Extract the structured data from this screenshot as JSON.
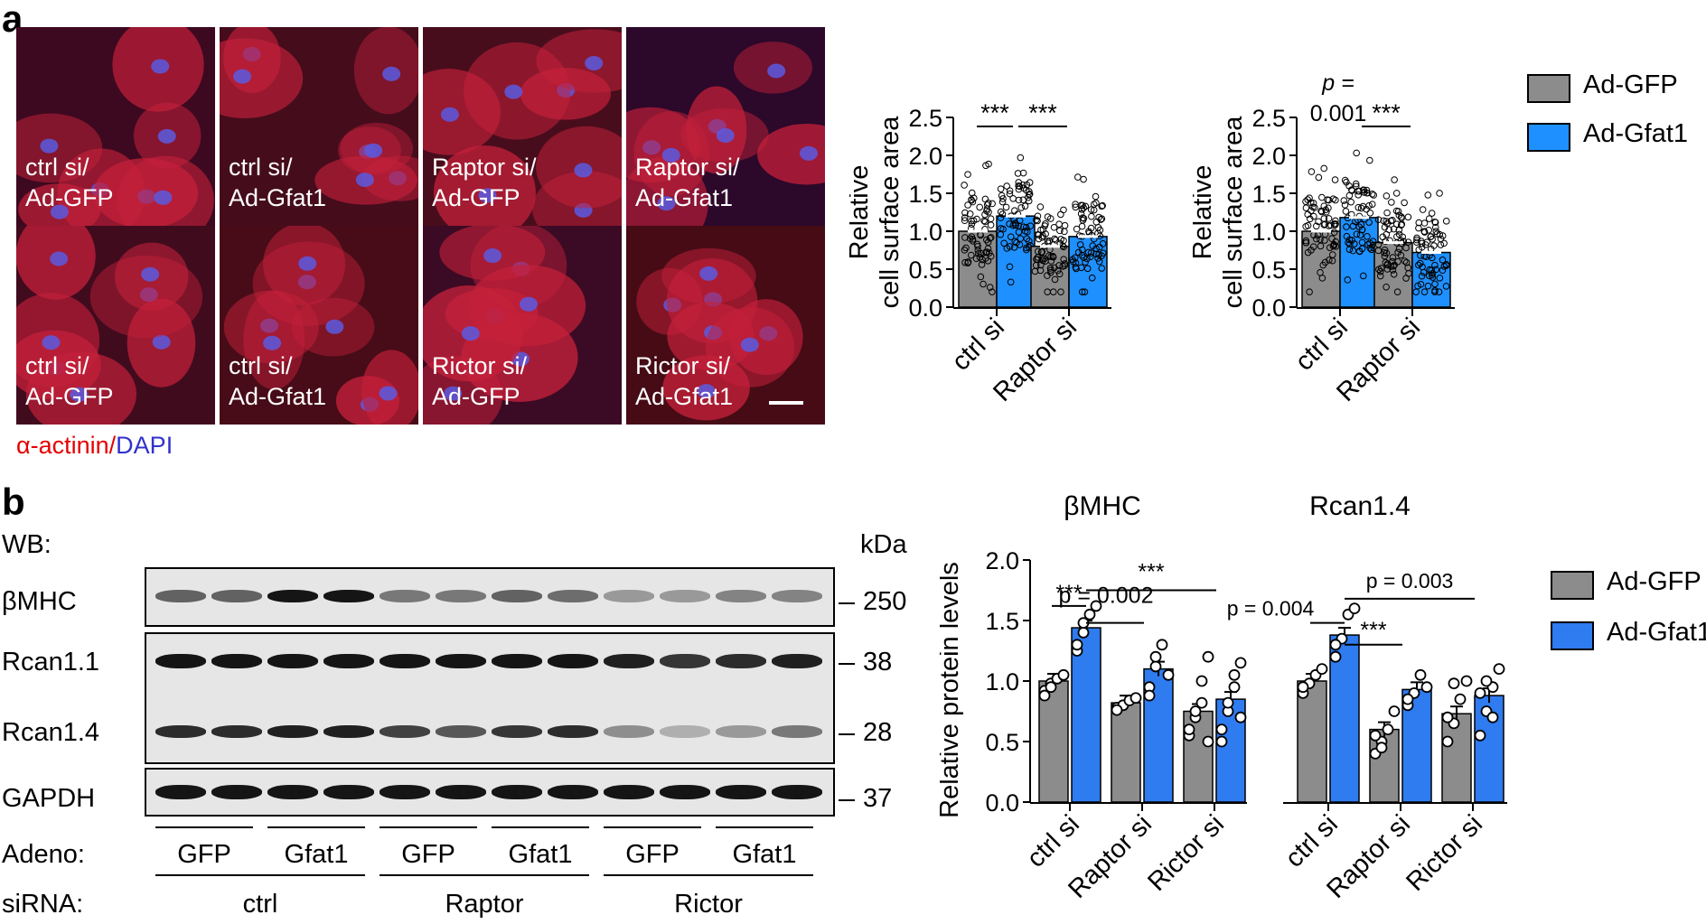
{
  "panel_a": {
    "letter": "a",
    "micrographs": [
      {
        "label": "ctrl si/\nAd-GFP",
        "tint": "#5b0f28"
      },
      {
        "label": "ctrl si/\nAd-Gfat1",
        "tint": "#6a1420"
      },
      {
        "label": "Raptor si/\nAd-GFP",
        "tint": "#701620"
      },
      {
        "label": "Raptor si/\nAd-Gfat1",
        "tint": "#3c0c3a"
      },
      {
        "label": "ctrl si/\nAd-GFP",
        "tint": "#621224"
      },
      {
        "label": "ctrl si/\nAd-Gfat1",
        "tint": "#6e1418"
      },
      {
        "label": "Rictor si/\nAd-GFP",
        "tint": "#581030"
      },
      {
        "label": "Rictor si/\nAd-Gfat1",
        "tint": "#6c1214"
      }
    ],
    "stain_actinin": "α-actinin",
    "stain_slash": "/",
    "stain_dapi": "DAPI"
  },
  "panel_b": {
    "letter": "b",
    "wb_label": "WB:",
    "kda_label": "kDa",
    "blots": [
      {
        "name": "βMHC",
        "kda": "250"
      },
      {
        "name": "Rcan1.1",
        "kda": "38"
      },
      {
        "name": "Rcan1.4",
        "kda": "28"
      },
      {
        "name": "GAPDH",
        "kda": "37"
      }
    ],
    "adeno_label": "Adeno:",
    "adeno_groups": [
      "GFP",
      "Gfat1",
      "GFP",
      "Gfat1",
      "GFP",
      "Gfat1"
    ],
    "sirna_label": "siRNA:",
    "sirna_groups": [
      "ctrl",
      "Raptor",
      "Rictor"
    ]
  },
  "legend": {
    "gfp": "Ad-GFP",
    "gfat1": "Ad-Gfat1"
  },
  "colors": {
    "gfp": "#8c8c8c",
    "gfat1": "#1e90ff",
    "gfat1_b": "#2f7bf0"
  },
  "chart_data": [
    {
      "type": "bar",
      "ylabel": "Relative\ncell surface area",
      "ylim": [
        0,
        2.5
      ],
      "yticks": [
        "0.0",
        "0.5",
        "1.0",
        "1.5",
        "2.0",
        "2.5"
      ],
      "categories": [
        "ctrl si",
        "Raptor si"
      ],
      "series": [
        {
          "name": "Ad-GFP",
          "values": [
            1.0,
            0.8
          ]
        },
        {
          "name": "Ad-Gfat1",
          "values": [
            1.2,
            0.93
          ]
        }
      ],
      "annotations": [
        "***",
        "***"
      ]
    },
    {
      "type": "bar",
      "ylabel": "Relative\ncell surface area",
      "ylim": [
        0,
        2.5
      ],
      "yticks": [
        "0.0",
        "0.5",
        "1.0",
        "1.5",
        "2.0",
        "2.5"
      ],
      "categories": [
        "ctrl si",
        "Raptor si"
      ],
      "series": [
        {
          "name": "Ad-GFP",
          "values": [
            1.0,
            0.85
          ]
        },
        {
          "name": "Ad-Gfat1",
          "values": [
            1.18,
            0.72
          ]
        }
      ],
      "annotations": [
        "p =",
        "0.001",
        "***"
      ]
    },
    {
      "type": "bar",
      "title": "βMHC",
      "ylabel": "Relative protein levels",
      "ylim": [
        0,
        2.0
      ],
      "yticks": [
        "0.0",
        "0.5",
        "1.0",
        "1.5",
        "2.0"
      ],
      "categories": [
        "ctrl si",
        "Raptor si",
        "Rictor si"
      ],
      "series": [
        {
          "name": "Ad-GFP",
          "values": [
            1.0,
            0.82,
            0.75
          ]
        },
        {
          "name": "Ad-Gfat1",
          "values": [
            1.44,
            1.1,
            0.85
          ]
        }
      ],
      "points": {
        "gfp": [
          [
            0.92,
            0.98,
            1.02,
            1.05,
            0.88,
            0.95
          ],
          [
            0.78,
            0.8,
            0.84,
            0.86,
            0.76
          ],
          [
            0.55,
            0.7,
            0.82,
            1.2,
            0.6,
            0.75,
            1.0,
            0.5
          ]
        ],
        "gfat1": [
          [
            1.25,
            1.4,
            1.55,
            1.62,
            1.3,
            1.48
          ],
          [
            0.95,
            1.12,
            1.3,
            1.05,
            0.88,
            1.2
          ],
          [
            0.5,
            0.75,
            0.95,
            1.15,
            0.6,
            0.82,
            1.05,
            0.7
          ]
        ]
      },
      "annotations": [
        "***",
        "p = 0.002",
        "***"
      ]
    },
    {
      "type": "bar",
      "title": "Rcan1.4",
      "ylim": [
        0,
        2.0
      ],
      "categories": [
        "ctrl si",
        "Raptor si",
        "Rictor si"
      ],
      "series": [
        {
          "name": "Ad-GFP",
          "values": [
            1.0,
            0.6,
            0.73
          ]
        },
        {
          "name": "Ad-Gfat1",
          "values": [
            1.38,
            0.93,
            0.88
          ]
        }
      ],
      "points": {
        "gfp": [
          [
            0.9,
            0.98,
            1.05,
            1.1,
            0.95
          ],
          [
            0.4,
            0.5,
            0.6,
            0.75,
            0.55,
            0.45
          ],
          [
            0.5,
            0.65,
            0.85,
            1.0,
            0.7,
            0.98
          ]
        ],
        "gfat1": [
          [
            1.2,
            1.35,
            1.55,
            1.6,
            1.3
          ],
          [
            0.8,
            0.9,
            1.05,
            0.95,
            0.85
          ],
          [
            0.55,
            0.75,
            0.95,
            1.1,
            0.9,
            1.0,
            0.7
          ]
        ]
      },
      "annotations": [
        "p = 0.004",
        "***",
        "p = 0.003"
      ]
    }
  ]
}
